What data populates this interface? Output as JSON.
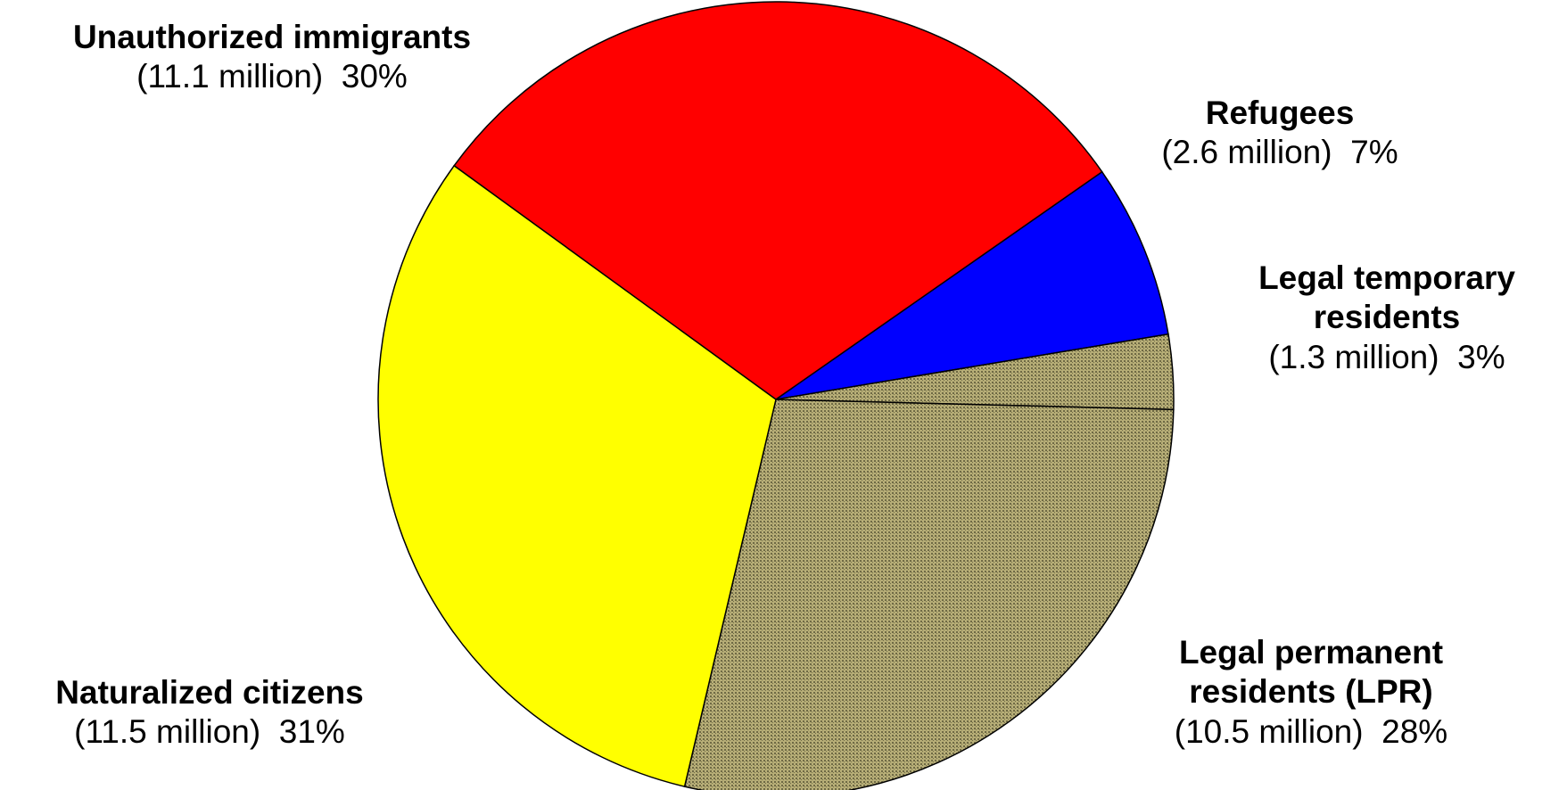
{
  "chart_data": {
    "type": "pie",
    "slices": [
      {
        "name": "Unauthorized immigrants",
        "amount": "(11.1 million)",
        "percent": "30%",
        "value": 30,
        "color": "#ff0000",
        "pattern": "none"
      },
      {
        "name": "Refugees",
        "amount": "(2.6 million)",
        "percent": "7%",
        "value": 7,
        "color": "#0000ff",
        "pattern": "none"
      },
      {
        "name": "Legal temporary residents",
        "amount": "(1.3 million)",
        "percent": "3%",
        "value": 3,
        "color": "#9f9666",
        "pattern": "fine-dots"
      },
      {
        "name": "Legal permanent residents (LPR)",
        "amount": "(10.5 million)",
        "percent": "28%",
        "value": 28,
        "color": "#a8a06a",
        "pattern": "fine-dots"
      },
      {
        "name": "Naturalized citizens",
        "amount": "(11.5 million)",
        "percent": "31%",
        "value": 31,
        "color": "#ffff00",
        "pattern": "none"
      }
    ]
  }
}
